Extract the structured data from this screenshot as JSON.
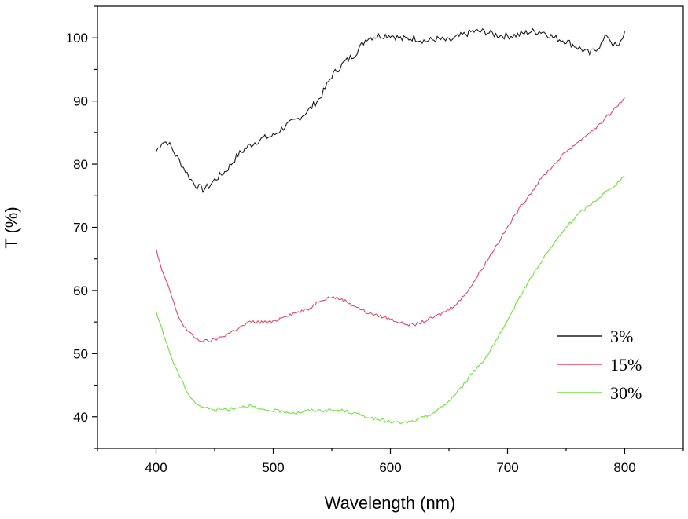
{
  "chart_data": {
    "type": "line",
    "title": "",
    "xlabel": "Wavelength (nm)",
    "ylabel": "T (%)",
    "xlim": [
      350,
      850
    ],
    "ylim": [
      35,
      105
    ],
    "x_ticks": [
      400,
      500,
      600,
      700,
      800
    ],
    "y_ticks": [
      40,
      50,
      60,
      70,
      80,
      90,
      100
    ],
    "grid": false,
    "legend_position": "lower-right",
    "series": [
      {
        "name": "3%",
        "color": "#1a1a1a",
        "x": [
          400,
          405,
          410,
          415,
          420,
          425,
          430,
          435,
          440,
          445,
          450,
          460,
          470,
          480,
          490,
          500,
          510,
          520,
          530,
          540,
          550,
          560,
          570,
          580,
          590,
          600,
          610,
          620,
          630,
          640,
          650,
          660,
          670,
          680,
          690,
          700,
          710,
          720,
          730,
          740,
          750,
          760,
          770,
          780,
          785,
          790,
          795,
          800
        ],
        "y": [
          82,
          83.5,
          83.5,
          82,
          80.5,
          79,
          77.5,
          76.5,
          76,
          76.5,
          77.5,
          79,
          81.5,
          83,
          84,
          84.5,
          86,
          87,
          88.5,
          90.5,
          94,
          96,
          97.5,
          100,
          100.3,
          100.5,
          99.8,
          100,
          99.5,
          99.8,
          99.5,
          100.3,
          101,
          101,
          100.5,
          100.3,
          100.5,
          101,
          101,
          100,
          99.5,
          98.5,
          97.5,
          99,
          100.5,
          99,
          98.5,
          101
        ]
      },
      {
        "name": "15%",
        "color": "#e8475f",
        "x": [
          400,
          405,
          410,
          415,
          420,
          425,
          430,
          435,
          440,
          445,
          450,
          460,
          470,
          480,
          490,
          500,
          510,
          520,
          530,
          540,
          550,
          560,
          570,
          580,
          590,
          600,
          610,
          620,
          630,
          640,
          650,
          660,
          670,
          680,
          690,
          700,
          710,
          720,
          730,
          740,
          750,
          760,
          770,
          780,
          790,
          800
        ],
        "y": [
          66.5,
          63,
          61,
          58,
          55.5,
          54,
          53,
          52.3,
          52,
          52,
          52.2,
          53,
          54,
          55,
          55,
          55,
          56,
          56.5,
          57,
          58.5,
          59,
          58.5,
          57.5,
          56.5,
          56,
          55.5,
          54.8,
          54.5,
          55.2,
          56,
          57,
          58.5,
          61,
          64,
          67,
          70,
          73,
          75.5,
          78,
          80,
          82,
          83.5,
          85,
          86.5,
          88.5,
          90.5
        ]
      },
      {
        "name": "30%",
        "color": "#6fe23c",
        "x": [
          400,
          405,
          410,
          415,
          420,
          425,
          430,
          435,
          440,
          445,
          450,
          460,
          470,
          480,
          490,
          500,
          510,
          520,
          530,
          540,
          550,
          560,
          570,
          580,
          590,
          600,
          610,
          620,
          630,
          640,
          650,
          660,
          670,
          680,
          690,
          700,
          710,
          720,
          730,
          740,
          750,
          760,
          770,
          780,
          790,
          800
        ],
        "y": [
          56.5,
          54,
          51,
          48.5,
          46.5,
          44.5,
          43,
          42,
          41.5,
          41.3,
          41.2,
          41.2,
          41.5,
          41.8,
          41,
          41,
          40.8,
          40.6,
          41,
          41,
          41,
          41,
          40.5,
          40,
          39.5,
          39.2,
          39,
          39.3,
          40,
          41,
          42.5,
          44.5,
          47,
          49,
          52,
          55,
          59,
          62,
          65,
          67.5,
          70,
          72,
          73.5,
          75,
          76.5,
          78
        ]
      }
    ]
  }
}
